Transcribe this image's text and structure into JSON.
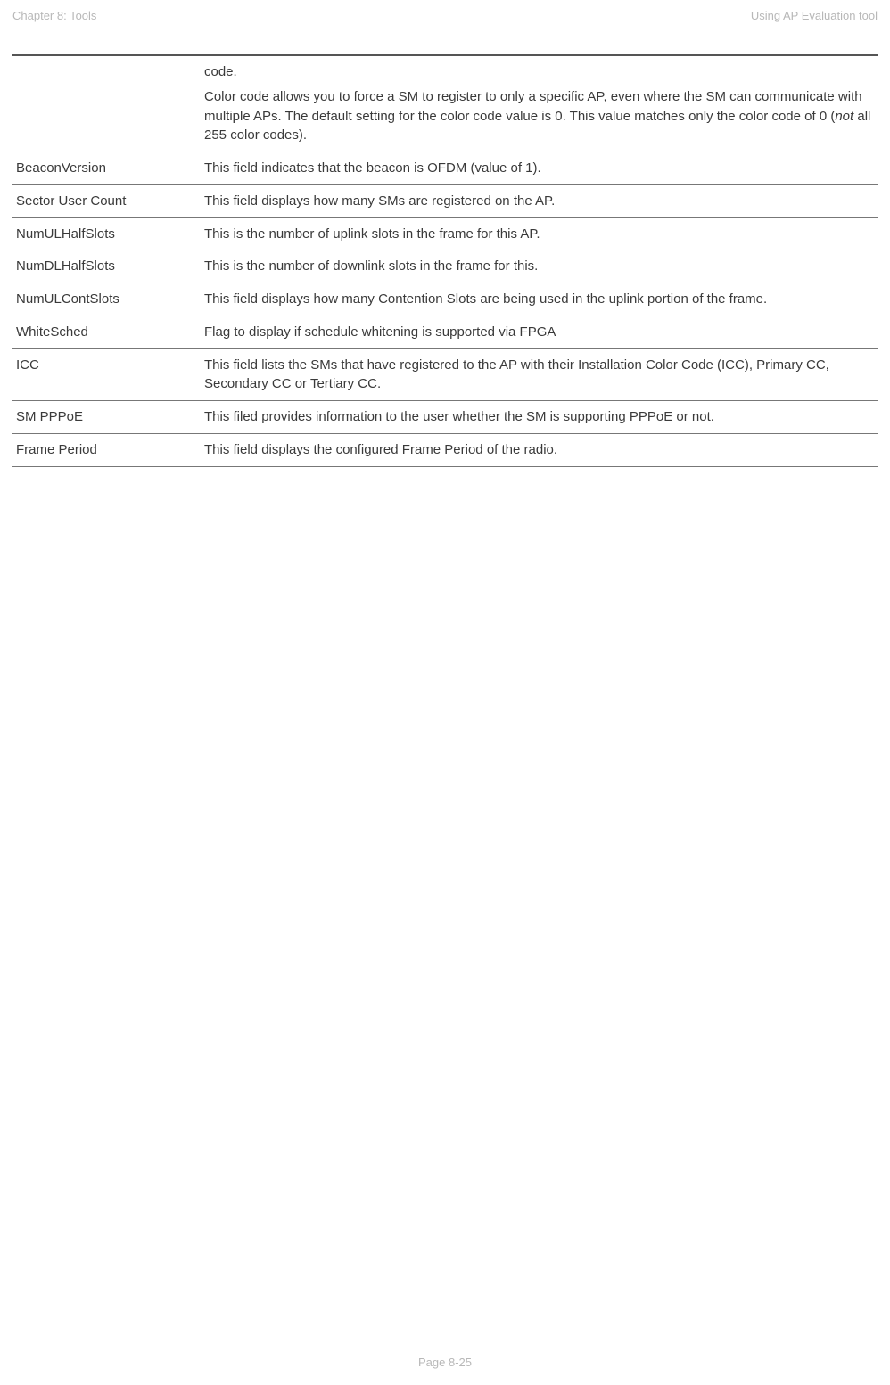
{
  "header": {
    "left": "Chapter 8:  Tools",
    "right": "Using AP Evaluation tool"
  },
  "rows": [
    {
      "label": "",
      "desc_parts": [
        {
          "text": "code."
        },
        {
          "text": "Color code allows you to force a SM to register to only a specific AP, even where the SM can communicate with multiple APs. The default setting for the color code value is 0. This value matches only the color code of 0 (",
          "class": "para-spacing"
        },
        {
          "text": "not",
          "class": "italic",
          "inline": true
        },
        {
          "text": " all 255 color codes).",
          "inline": true
        }
      ]
    },
    {
      "label": "BeaconVersion",
      "desc": "This field indicates that the beacon is OFDM (value of 1)."
    },
    {
      "label": "Sector User Count",
      "desc": "This field displays how many SMs are registered on the AP."
    },
    {
      "label": "NumULHalfSlots",
      "desc": "This is the number of uplink slots in the frame for this AP."
    },
    {
      "label": "NumDLHalfSlots",
      "desc": "This is the number of downlink slots in the frame for this."
    },
    {
      "label": "NumULContSlots",
      "desc": "This field displays how many Contention Slots are being used in the uplink portion of the frame."
    },
    {
      "label": "WhiteSched",
      "desc": "Flag to display if schedule whitening is supported via FPGA"
    },
    {
      "label": "ICC",
      "desc": "This field lists the SMs that have registered to the AP with their Installation Color Code (ICC),   Primary CC, Secondary CC or Tertiary CC."
    },
    {
      "label": "SM PPPoE",
      "desc": "This filed provides information to the user whether the SM is supporting PPPoE or not."
    },
    {
      "label": "Frame Period",
      "desc": "This field displays the configured Frame Period of the radio."
    }
  ],
  "footer": "Page 8-25"
}
